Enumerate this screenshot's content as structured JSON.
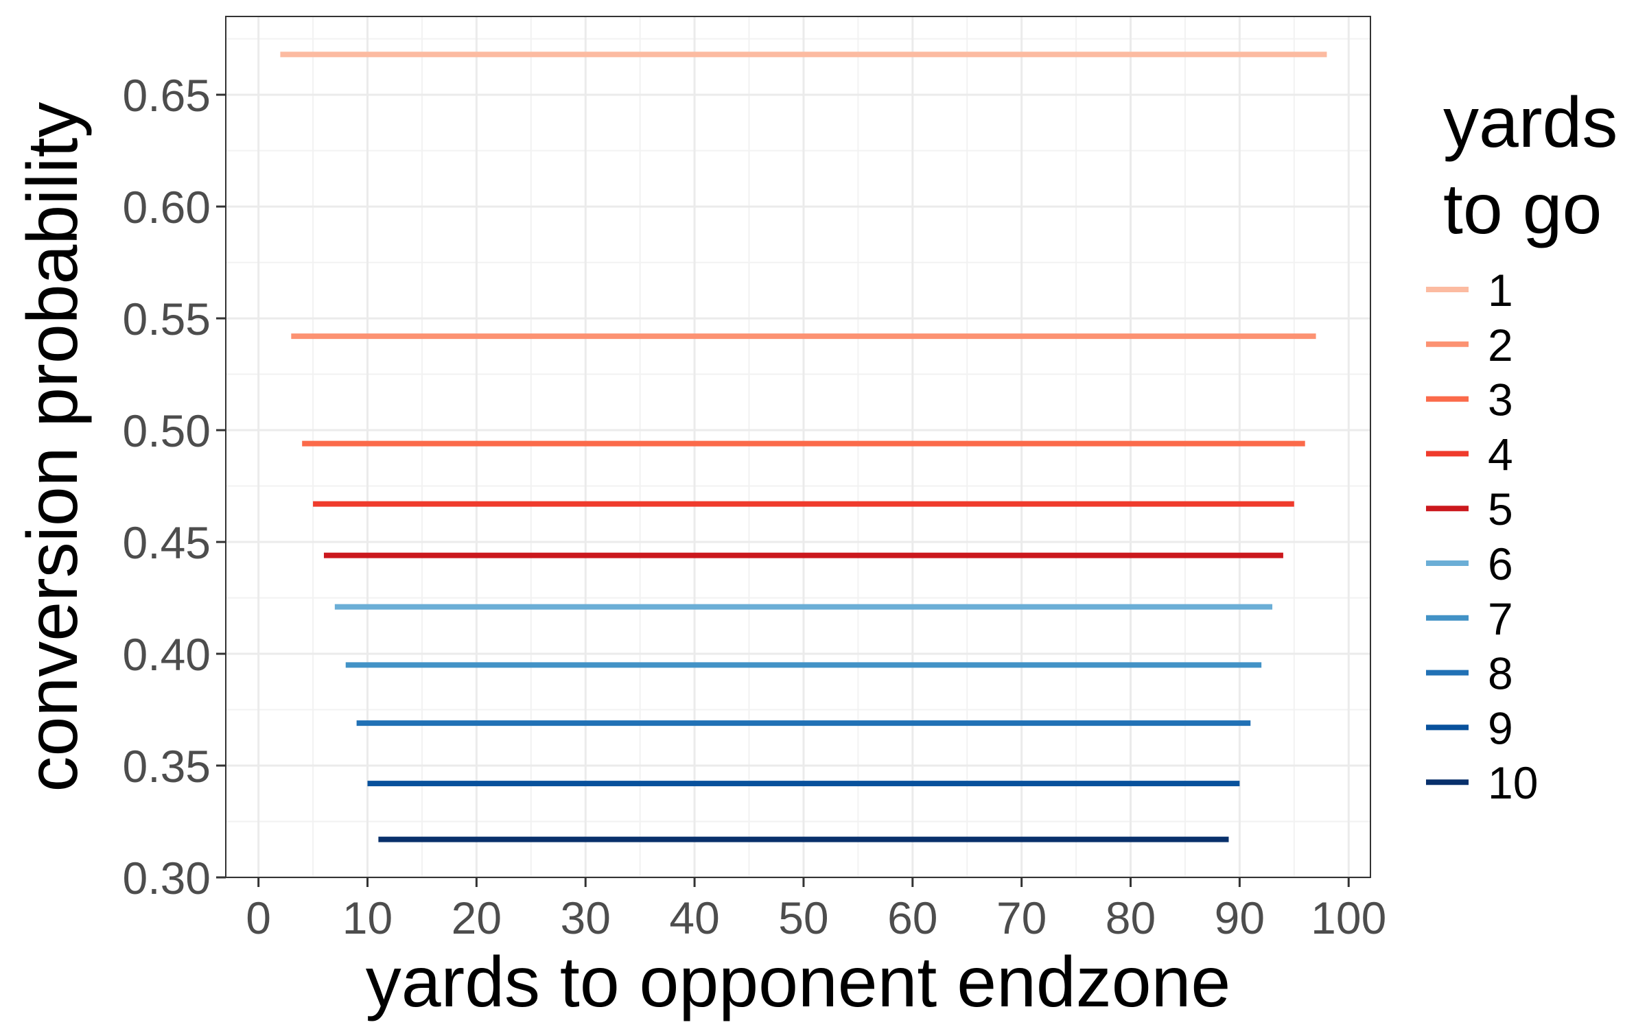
{
  "chart_data": {
    "type": "line",
    "xlabel": "yards to opponent endzone",
    "ylabel": "conversion probability",
    "xlim": [
      -3,
      102
    ],
    "ylim": [
      0.3,
      0.685
    ],
    "xticks": [
      0,
      10,
      20,
      30,
      40,
      50,
      60,
      70,
      80,
      90,
      100
    ],
    "yticks": [
      0.3,
      0.35,
      0.4,
      0.45,
      0.5,
      0.55,
      0.6,
      0.65
    ],
    "ytick_labels": [
      "0.30",
      "0.35",
      "0.40",
      "0.45",
      "0.50",
      "0.55",
      "0.60",
      "0.65"
    ],
    "xtick_labels": [
      "0",
      "10",
      "20",
      "30",
      "40",
      "50",
      "60",
      "70",
      "80",
      "90",
      "100"
    ],
    "grid": true,
    "legend": {
      "title_lines": [
        "yards",
        "to go"
      ],
      "position": "right"
    },
    "series": [
      {
        "name": "1",
        "color": "#fcbba1",
        "x": [
          2,
          98
        ],
        "y": [
          0.668,
          0.668
        ]
      },
      {
        "name": "2",
        "color": "#fc9272",
        "x": [
          3,
          97
        ],
        "y": [
          0.542,
          0.542
        ]
      },
      {
        "name": "3",
        "color": "#fb6a4a",
        "x": [
          4,
          96
        ],
        "y": [
          0.494,
          0.494
        ]
      },
      {
        "name": "4",
        "color": "#ef3b2c",
        "x": [
          5,
          95
        ],
        "y": [
          0.467,
          0.467
        ]
      },
      {
        "name": "5",
        "color": "#cb181d",
        "x": [
          6,
          94
        ],
        "y": [
          0.444,
          0.444
        ]
      },
      {
        "name": "6",
        "color": "#6baed6",
        "x": [
          7,
          93
        ],
        "y": [
          0.421,
          0.421
        ]
      },
      {
        "name": "7",
        "color": "#4292c6",
        "x": [
          8,
          92
        ],
        "y": [
          0.395,
          0.395
        ]
      },
      {
        "name": "8",
        "color": "#2171b5",
        "x": [
          9,
          91
        ],
        "y": [
          0.369,
          0.369
        ]
      },
      {
        "name": "9",
        "color": "#08519c",
        "x": [
          10,
          90
        ],
        "y": [
          0.342,
          0.342
        ]
      },
      {
        "name": "10",
        "color": "#08306b",
        "x": [
          11,
          89
        ],
        "y": [
          0.317,
          0.317
        ]
      }
    ]
  }
}
